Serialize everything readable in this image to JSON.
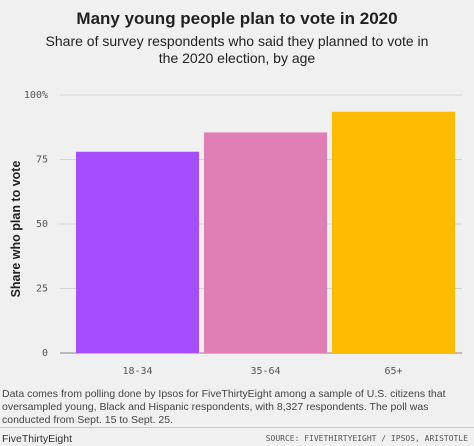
{
  "chart_data": {
    "type": "bar",
    "title": "Many young people plan to vote in 2020",
    "subtitle": "Share of survey respondents who said they planned to vote in the 2020 election, by age",
    "ylabel": "Share who plan to vote",
    "xlabel": "",
    "categories": [
      "18-34",
      "35-64",
      "65+"
    ],
    "values": [
      78,
      85.5,
      93.5
    ],
    "ylim": [
      0,
      100
    ],
    "yticks": [
      "0",
      "25",
      "50",
      "75",
      "100%"
    ],
    "grid": true,
    "colors": [
      "#a64dff",
      "#e07fb5",
      "#ffbb00"
    ]
  },
  "note": "Data comes from polling done by Ipsos for FiveThirtyEight among a sample of U.S. citizens that oversampled young, Black and Hispanic respondents, with 8,327 respondents. The poll was conducted from Sept. 15 to Sept. 25.",
  "footer": {
    "brand": "FiveThirtyEight",
    "source": "SOURCE: FIVETHIRTYEIGHT / IPSOS, ARISTOTLE"
  }
}
